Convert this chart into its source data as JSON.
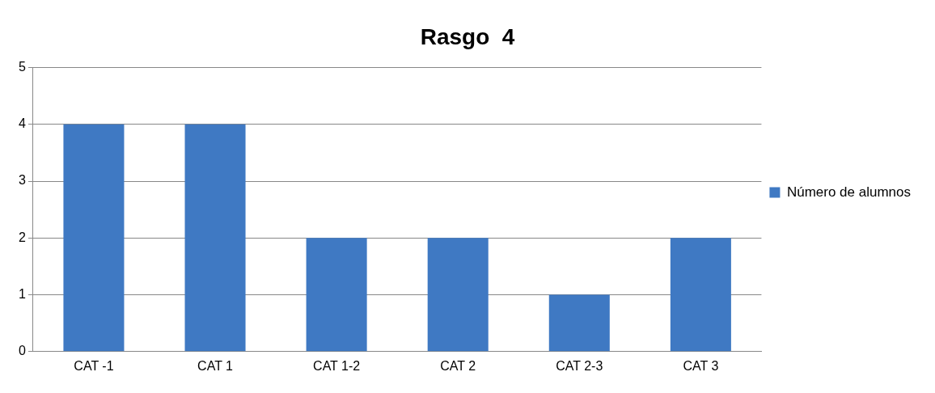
{
  "chart_data": {
    "type": "bar",
    "title": "Rasgo  4",
    "categories": [
      "CAT -1",
      "CAT 1",
      "CAT 1-2",
      "CAT 2",
      "CAT 2-3",
      "CAT 3"
    ],
    "series": [
      {
        "name": "Número de alumnos",
        "color": "#3f79c3",
        "values": [
          4,
          4,
          2,
          2,
          1,
          2
        ]
      }
    ],
    "ylim": [
      0,
      5
    ],
    "yticks": [
      0,
      1,
      2,
      3,
      4,
      5
    ],
    "grid": "y",
    "legend": "right"
  }
}
